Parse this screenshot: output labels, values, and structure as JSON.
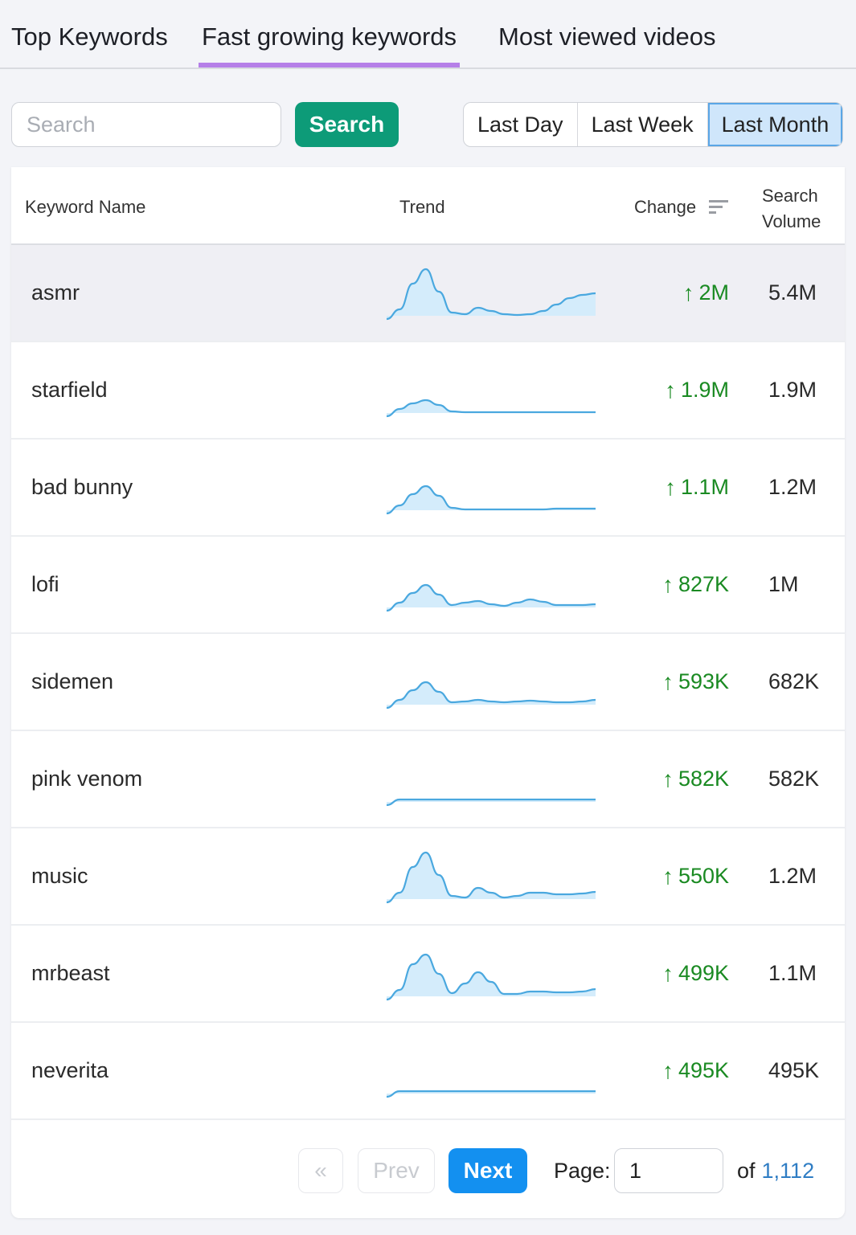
{
  "tabs": [
    {
      "label": "Top Keywords",
      "active": false
    },
    {
      "label": "Fast growing keywords",
      "active": true
    },
    {
      "label": "Most viewed videos",
      "active": false
    }
  ],
  "search": {
    "placeholder": "Search",
    "value": "",
    "button_label": "Search"
  },
  "period_filter": {
    "options": [
      "Last Day",
      "Last Week",
      "Last Month"
    ],
    "selected": "Last Month"
  },
  "table": {
    "headers": {
      "keyword": "Keyword Name",
      "trend": "Trend",
      "change": "Change",
      "volume_line1": "Search",
      "volume_line2": "Volume"
    },
    "sort_icon": "sort-lines-icon",
    "rows": [
      {
        "keyword": "asmr",
        "change": "2M",
        "volume": "5.4M",
        "trend": [
          2,
          8,
          40,
          58,
          30,
          4,
          2,
          10,
          6,
          2,
          1,
          2,
          6,
          14,
          22,
          26,
          28
        ]
      },
      {
        "keyword": "starfield",
        "change": "1.9M",
        "volume": "1.9M",
        "trend": [
          2,
          5,
          12,
          16,
          10,
          2,
          1,
          1,
          1,
          1,
          1,
          1,
          1,
          1,
          1,
          1,
          1
        ]
      },
      {
        "keyword": "bad bunny",
        "change": "1.1M",
        "volume": "1.2M",
        "trend": [
          2,
          6,
          20,
          30,
          18,
          3,
          1,
          1,
          1,
          1,
          1,
          1,
          1,
          2,
          2,
          2,
          2
        ]
      },
      {
        "keyword": "lofi",
        "change": "827K",
        "volume": "1M",
        "trend": [
          2,
          6,
          18,
          28,
          16,
          3,
          6,
          8,
          4,
          2,
          6,
          10,
          7,
          3,
          3,
          3,
          4
        ]
      },
      {
        "keyword": "sidemen",
        "change": "593K",
        "volume": "682K",
        "trend": [
          2,
          6,
          18,
          28,
          16,
          3,
          4,
          6,
          4,
          3,
          4,
          5,
          4,
          3,
          3,
          4,
          6
        ]
      },
      {
        "keyword": "pink venom",
        "change": "582K",
        "volume": "582K",
        "trend": [
          1,
          3,
          3,
          3,
          3,
          3,
          3,
          3,
          3,
          3,
          3,
          3,
          3,
          3,
          3,
          3,
          3
        ]
      },
      {
        "keyword": "music",
        "change": "550K",
        "volume": "1.2M",
        "trend": [
          2,
          8,
          40,
          58,
          30,
          4,
          2,
          14,
          8,
          2,
          4,
          8,
          8,
          6,
          6,
          7,
          9
        ]
      },
      {
        "keyword": "mrbeast",
        "change": "499K",
        "volume": "1.1M",
        "trend": [
          2,
          8,
          40,
          52,
          28,
          4,
          16,
          30,
          18,
          3,
          3,
          6,
          6,
          5,
          5,
          6,
          9
        ]
      },
      {
        "keyword": "neverita",
        "change": "495K",
        "volume": "495K",
        "trend": [
          1,
          3,
          3,
          3,
          3,
          3,
          3,
          3,
          3,
          3,
          3,
          3,
          3,
          3,
          3,
          3,
          3
        ]
      }
    ]
  },
  "pagination": {
    "first_label": "«",
    "prev_label": "Prev",
    "next_label": "Next",
    "page_label": "Page:",
    "current_page": "1",
    "of_label": "of",
    "total_pages": "1,112"
  },
  "colors": {
    "tab_underline": "#b57fe8",
    "search_button": "#0d9b78",
    "selected_segment": "#cfe6fb",
    "change_green": "#1a8a22",
    "sparkline_line": "#4aa8df",
    "sparkline_fill": "#d4ecfb",
    "next_button": "#1390f0",
    "total_pages_link": "#2f7dc4"
  }
}
